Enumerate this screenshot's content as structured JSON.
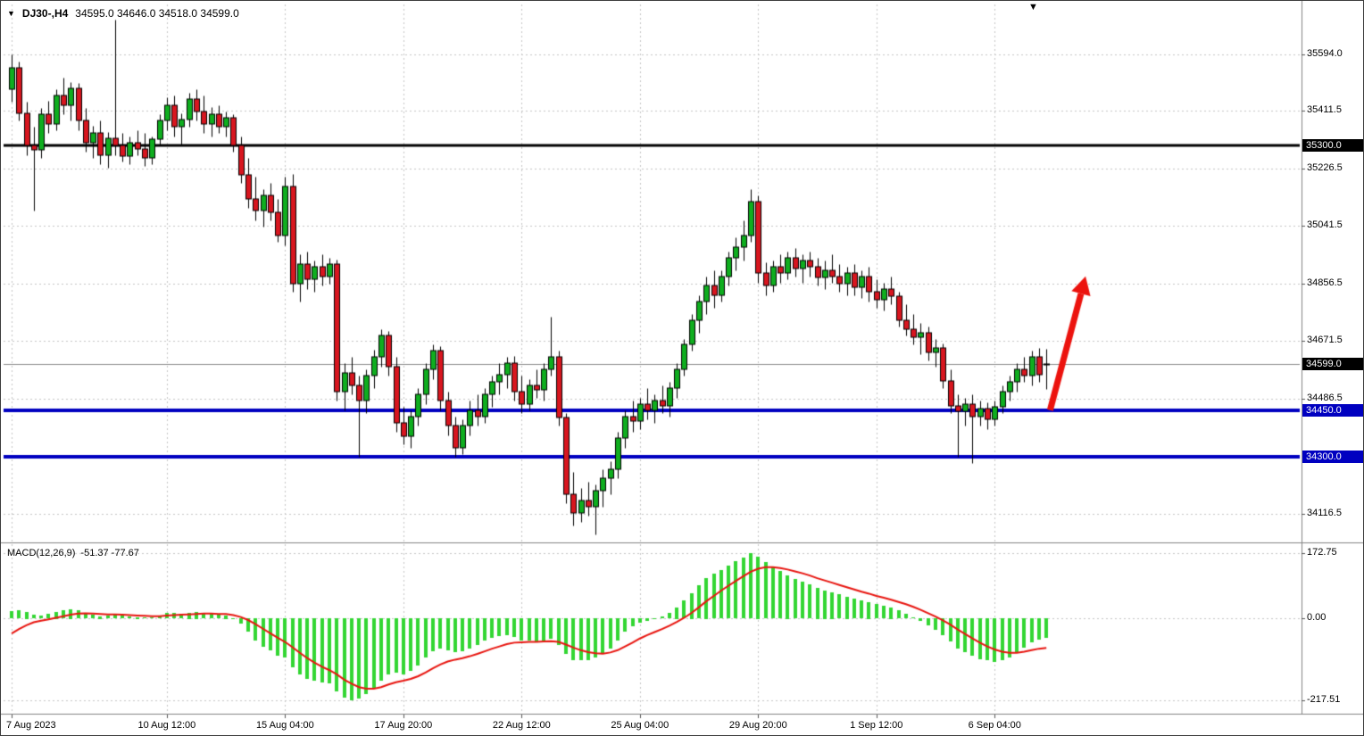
{
  "header": {
    "dropdown_icon": "▼",
    "symbol_timeframe": "DJ30-,H4",
    "ohlc_text": "34595.0 34646.0 34518.0 34599.0"
  },
  "macd_header": {
    "name": "MACD(12,26,9)",
    "values": "-51.37 -77.67"
  },
  "icons": {
    "shift_marker": "▼"
  },
  "colors": {
    "background": "#ffffff",
    "bull": "#0fae1f",
    "bear": "#d8161f",
    "wick": "#000000",
    "grid": "#c6c6c6",
    "separator": "#848484",
    "current_price_line": "#8a8a8a",
    "macd_histogram": "#33d633",
    "macd_signal": "#e8150f",
    "arrow": "#ec130e",
    "axis_text": "#000000",
    "tag_text": "#ffffff",
    "level_black": "#000000",
    "level_blue": "#0000c0"
  },
  "chart_data": [
    {
      "type": "candlestick",
      "symbol": "DJ30-",
      "timeframe": "H4",
      "current_bar": {
        "open": 34595.0,
        "high": 34646.0,
        "low": 34518.0,
        "close": 34599.0
      },
      "y_axis": {
        "labels": [
          "35594.0",
          "35411.5",
          "35226.5",
          "35041.5",
          "34856.5",
          "34671.5",
          "34486.5",
          "34116.5"
        ],
        "view_max": 35725,
        "view_min": 34045
      },
      "x_axis": {
        "ticks": [
          {
            "label": "7 Aug 2023",
            "index": 0
          },
          {
            "label": "10 Aug 12:00",
            "index": 21
          },
          {
            "label": "15 Aug 04:00",
            "index": 37
          },
          {
            "label": "17 Aug 20:00",
            "index": 53
          },
          {
            "label": "22 Aug 12:00",
            "index": 69
          },
          {
            "label": "25 Aug 04:00",
            "index": 85
          },
          {
            "label": "29 Aug 20:00",
            "index": 101
          },
          {
            "label": "1 Sep 12:00",
            "index": 117
          },
          {
            "label": "6 Sep 04:00",
            "index": 133
          }
        ]
      },
      "levels": [
        {
          "price": 35300.0,
          "label": "35300.0",
          "color": "#000000",
          "width": 3
        },
        {
          "price": 34450.0,
          "label": "34450.0",
          "color": "#0000c0",
          "width": 4
        },
        {
          "price": 34300.0,
          "label": "34300.0",
          "color": "#0000c0",
          "width": 4
        }
      ],
      "current_price": {
        "price": 34599.0,
        "label": "34599.0",
        "tag_color": "#000000"
      },
      "arrow_annotation": {
        "from_index": 140.5,
        "from_price": 34450,
        "to_index": 145.3,
        "to_price": 34880,
        "color": "#ec130e"
      },
      "candles": [
        [
          35480,
          35594,
          35440,
          35550
        ],
        [
          35550,
          35570,
          35380,
          35405
        ],
        [
          35405,
          35440,
          35270,
          35300
        ],
        [
          35300,
          35360,
          35090,
          35285
        ],
        [
          35285,
          35420,
          35260,
          35400
        ],
        [
          35400,
          35445,
          35340,
          35370
        ],
        [
          35370,
          35480,
          35350,
          35460
        ],
        [
          35460,
          35520,
          35400,
          35430
        ],
        [
          35430,
          35505,
          35380,
          35485
        ],
        [
          35485,
          35500,
          35350,
          35380
        ],
        [
          35380,
          35420,
          35280,
          35310
        ],
        [
          35310,
          35365,
          35260,
          35340
        ],
        [
          35340,
          35380,
          35240,
          35270
        ],
        [
          35270,
          35345,
          35230,
          35325
        ],
        [
          35325,
          35705,
          35270,
          35300
        ],
        [
          35300,
          35340,
          35250,
          35265
        ],
        [
          35265,
          35330,
          35240,
          35310
        ],
        [
          35310,
          35350,
          35270,
          35290
        ],
        [
          35290,
          35340,
          35235,
          35260
        ],
        [
          35260,
          35330,
          35240,
          35320
        ],
        [
          35320,
          35400,
          35300,
          35380
        ],
        [
          35380,
          35455,
          35350,
          35430
        ],
        [
          35430,
          35460,
          35330,
          35360
        ],
        [
          35360,
          35405,
          35300,
          35385
        ],
        [
          35385,
          35470,
          35360,
          35450
        ],
        [
          35450,
          35480,
          35380,
          35410
        ],
        [
          35410,
          35460,
          35340,
          35370
        ],
        [
          35370,
          35425,
          35330,
          35400
        ],
        [
          35400,
          35430,
          35340,
          35360
        ],
        [
          35360,
          35410,
          35330,
          35390
        ],
        [
          35390,
          35400,
          35280,
          35300
        ],
        [
          35300,
          35330,
          35180,
          35205
        ],
        [
          35205,
          35260,
          35100,
          35130
        ],
        [
          35130,
          35200,
          35060,
          35090
        ],
        [
          35090,
          35160,
          35040,
          35140
        ],
        [
          35140,
          35180,
          35060,
          35085
        ],
        [
          35085,
          35130,
          34990,
          35010
        ],
        [
          35010,
          35200,
          34980,
          35170
        ],
        [
          35170,
          35210,
          34830,
          34855
        ],
        [
          34855,
          34950,
          34800,
          34920
        ],
        [
          34920,
          34960,
          34840,
          34870
        ],
        [
          34870,
          34930,
          34830,
          34910
        ],
        [
          34910,
          34950,
          34850,
          34880
        ],
        [
          34880,
          34940,
          34855,
          34920
        ],
        [
          34920,
          34935,
          34480,
          34510
        ],
        [
          34510,
          34600,
          34450,
          34570
        ],
        [
          34570,
          34620,
          34500,
          34530
        ],
        [
          34530,
          34560,
          34300,
          34480
        ],
        [
          34480,
          34580,
          34440,
          34560
        ],
        [
          34560,
          34645,
          34520,
          34620
        ],
        [
          34620,
          34710,
          34590,
          34690
        ],
        [
          34690,
          34705,
          34560,
          34590
        ],
        [
          34590,
          34620,
          34380,
          34410
        ],
        [
          34410,
          34460,
          34340,
          34365
        ],
        [
          34365,
          34450,
          34330,
          34430
        ],
        [
          34430,
          34520,
          34400,
          34500
        ],
        [
          34500,
          34600,
          34470,
          34580
        ],
        [
          34580,
          34660,
          34550,
          34640
        ],
        [
          34640,
          34655,
          34450,
          34480
        ],
        [
          34480,
          34510,
          34370,
          34400
        ],
        [
          34400,
          34430,
          34300,
          34330
        ],
        [
          34330,
          34420,
          34310,
          34400
        ],
        [
          34400,
          34480,
          34370,
          34450
        ],
        [
          34450,
          34500,
          34400,
          34430
        ],
        [
          34430,
          34520,
          34410,
          34500
        ],
        [
          34500,
          34560,
          34460,
          34540
        ],
        [
          34540,
          34600,
          34500,
          34565
        ],
        [
          34565,
          34620,
          34520,
          34600
        ],
        [
          34600,
          34625,
          34480,
          34510
        ],
        [
          34510,
          34560,
          34440,
          34470
        ],
        [
          34470,
          34550,
          34450,
          34530
        ],
        [
          34530,
          34580,
          34490,
          34515
        ],
        [
          34515,
          34600,
          34480,
          34580
        ],
        [
          34580,
          34750,
          34560,
          34620
        ],
        [
          34620,
          34640,
          34400,
          34425
        ],
        [
          34425,
          34440,
          34150,
          34180
        ],
        [
          34180,
          34250,
          34080,
          34120
        ],
        [
          34120,
          34200,
          34090,
          34160
        ],
        [
          34160,
          34220,
          34110,
          34140
        ],
        [
          34140,
          34210,
          34050,
          34190
        ],
        [
          34190,
          34260,
          34140,
          34230
        ],
        [
          34230,
          34285,
          34180,
          34260
        ],
        [
          34260,
          34380,
          34230,
          34360
        ],
        [
          34360,
          34450,
          34330,
          34430
        ],
        [
          34430,
          34480,
          34380,
          34415
        ],
        [
          34415,
          34490,
          34390,
          34470
        ],
        [
          34470,
          34520,
          34420,
          34450
        ],
        [
          34450,
          34500,
          34410,
          34480
        ],
        [
          34480,
          34530,
          34440,
          34465
        ],
        [
          34465,
          34540,
          34430,
          34520
        ],
        [
          34520,
          34600,
          34490,
          34580
        ],
        [
          34580,
          34680,
          34560,
          34660
        ],
        [
          34660,
          34760,
          34640,
          34740
        ],
        [
          34740,
          34820,
          34700,
          34800
        ],
        [
          34800,
          34880,
          34760,
          34850
        ],
        [
          34850,
          34900,
          34780,
          34820
        ],
        [
          34820,
          34900,
          34800,
          34880
        ],
        [
          34880,
          34960,
          34850,
          34940
        ],
        [
          34940,
          35005,
          34900,
          34975
        ],
        [
          34975,
          35060,
          34930,
          35010
        ],
        [
          35010,
          35160,
          34990,
          35120
        ],
        [
          35120,
          35140,
          34860,
          34890
        ],
        [
          34890,
          34925,
          34820,
          34850
        ],
        [
          34850,
          34930,
          34830,
          34910
        ],
        [
          34910,
          34950,
          34860,
          34890
        ],
        [
          34890,
          34960,
          34870,
          34940
        ],
        [
          34940,
          34970,
          34880,
          34905
        ],
        [
          34905,
          34950,
          34860,
          34930
        ],
        [
          34930,
          34960,
          34880,
          34910
        ],
        [
          34910,
          34940,
          34850,
          34875
        ],
        [
          34875,
          34930,
          34840,
          34900
        ],
        [
          34900,
          34950,
          34860,
          34880
        ],
        [
          34880,
          34920,
          34830,
          34855
        ],
        [
          34855,
          34910,
          34820,
          34890
        ],
        [
          34890,
          34920,
          34820,
          34845
        ],
        [
          34845,
          34900,
          34810,
          34880
        ],
        [
          34880,
          34910,
          34800,
          34830
        ],
        [
          34830,
          34870,
          34780,
          34805
        ],
        [
          34805,
          34860,
          34770,
          34840
        ],
        [
          34840,
          34880,
          34790,
          34815
        ],
        [
          34815,
          34830,
          34720,
          34740
        ],
        [
          34740,
          34790,
          34690,
          34710
        ],
        [
          34710,
          34760,
          34660,
          34685
        ],
        [
          34685,
          34730,
          34630,
          34700
        ],
        [
          34700,
          34720,
          34610,
          34635
        ],
        [
          34635,
          34680,
          34590,
          34650
        ],
        [
          34650,
          34665,
          34520,
          34545
        ],
        [
          34545,
          34580,
          34440,
          34465
        ],
        [
          34465,
          34500,
          34300,
          34445
        ],
        [
          34445,
          34490,
          34400,
          34470
        ],
        [
          34470,
          34500,
          34280,
          34430
        ],
        [
          34430,
          34480,
          34400,
          34455
        ],
        [
          34455,
          34475,
          34390,
          34420
        ],
        [
          34420,
          34480,
          34400,
          34460
        ],
        [
          34460,
          34530,
          34440,
          34510
        ],
        [
          34510,
          34560,
          34480,
          34540
        ],
        [
          34540,
          34600,
          34510,
          34580
        ],
        [
          34580,
          34620,
          34540,
          34560
        ],
        [
          34560,
          34640,
          34530,
          34620
        ],
        [
          34620,
          34650,
          34540,
          34565
        ],
        [
          34595,
          34646,
          34518,
          34599
        ]
      ]
    },
    {
      "type": "macd",
      "label": "MACD(12,26,9)",
      "main_value": -51.37,
      "signal_value": -77.67,
      "y_axis": {
        "labels": [
          "172.75",
          "0.00",
          "-217.51"
        ],
        "view_max": 190,
        "view_min": -250
      },
      "histogram": [
        20,
        22,
        18,
        10,
        8,
        12,
        18,
        22,
        25,
        22,
        15,
        10,
        6,
        8,
        10,
        7,
        5,
        4,
        2,
        3,
        8,
        14,
        15,
        13,
        16,
        18,
        15,
        12,
        10,
        9,
        0,
        -15,
        -35,
        -60,
        -75,
        -85,
        -100,
        -105,
        -130,
        -150,
        -160,
        -165,
        -170,
        -172,
        -195,
        -210,
        -217.51,
        -212,
        -200,
        -185,
        -165,
        -150,
        -145,
        -150,
        -140,
        -125,
        -105,
        -88,
        -80,
        -85,
        -90,
        -88,
        -80,
        -70,
        -60,
        -52,
        -48,
        -45,
        -50,
        -58,
        -60,
        -62,
        -58,
        -55,
        -70,
        -95,
        -110,
        -112,
        -110,
        -105,
        -95,
        -80,
        -58,
        -35,
        -22,
        -12,
        -8,
        -2,
        5,
        15,
        30,
        48,
        68,
        88,
        108,
        118,
        128,
        140,
        152,
        162,
        172.75,
        165,
        150,
        138,
        125,
        115,
        105,
        98,
        90,
        82,
        75,
        70,
        64,
        58,
        52,
        48,
        44,
        38,
        34,
        30,
        22,
        12,
        2,
        -8,
        -20,
        -30,
        -45,
        -62,
        -80,
        -90,
        -100,
        -108,
        -112,
        -115,
        -112,
        -105,
        -92,
        -78,
        -65,
        -56,
        -51.37
      ],
      "signal": [
        -40,
        -28,
        -18,
        -10,
        -6,
        -2,
        2,
        6,
        10,
        13,
        14,
        13,
        12,
        11,
        11,
        10,
        9,
        8,
        7,
        6,
        6,
        8,
        9,
        10,
        11,
        12,
        13,
        13,
        12,
        12,
        9,
        4,
        -4,
        -15,
        -27,
        -39,
        -51,
        -62,
        -76,
        -91,
        -105,
        -117,
        -128,
        -137,
        -148,
        -162,
        -173,
        -182,
        -186,
        -186,
        -182,
        -175,
        -169,
        -165,
        -160,
        -153,
        -143,
        -132,
        -122,
        -114,
        -109,
        -105,
        -100,
        -94,
        -87,
        -80,
        -74,
        -68,
        -64,
        -63,
        -62,
        -62,
        -61,
        -60,
        -62,
        -69,
        -77,
        -84,
        -89,
        -92,
        -93,
        -90,
        -84,
        -74,
        -64,
        -53,
        -44,
        -36,
        -28,
        -19,
        -9,
        2,
        15,
        30,
        46,
        60,
        74,
        87,
        100,
        112,
        124,
        132,
        136,
        136,
        134,
        130,
        125,
        120,
        114,
        107,
        101,
        95,
        89,
        83,
        77,
        71,
        66,
        60,
        55,
        50,
        44,
        38,
        31,
        23,
        14,
        5,
        -5,
        -16,
        -29,
        -41,
        -53,
        -64,
        -74,
        -82,
        -88,
        -91,
        -91,
        -88,
        -84,
        -80,
        -77.67
      ]
    }
  ]
}
